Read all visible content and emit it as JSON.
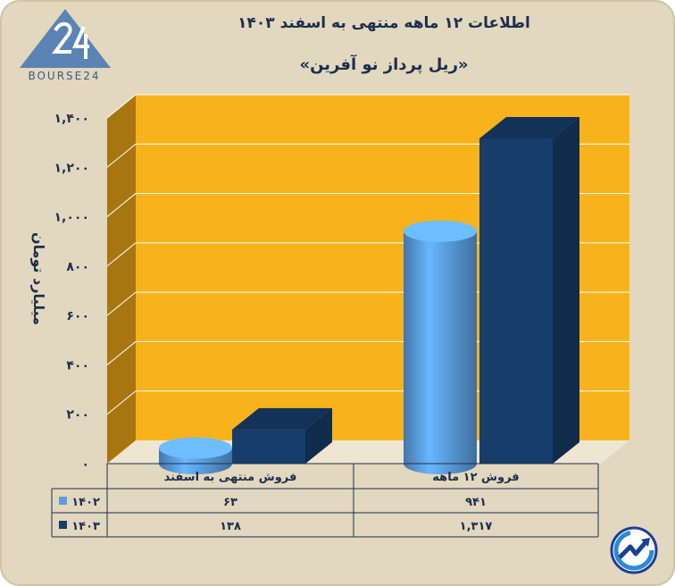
{
  "header": {
    "logo_text": "BOURSE24",
    "title": "اطلاعات ۱۲ ماهه منتهی به اسفند ۱۴۰۳",
    "subtitle": "«ریل پرداز نو آفرین»"
  },
  "colors": {
    "background": "#e2d7bf",
    "plot_area": "#f8b21b",
    "plot_side": "#a87610",
    "series_1402": "#5b9ee0",
    "series_1403": "#173d6b",
    "title_text": "#1b2f4c"
  },
  "chart_data": {
    "type": "bar",
    "ylabel": "میلیارد تومان",
    "ylim": [
      0,
      1400
    ],
    "y_ticks": [
      "۰",
      "۲۰۰",
      "۴۰۰",
      "۶۰۰",
      "۸۰۰",
      "۱,۰۰۰",
      "۱,۲۰۰",
      "۱,۴۰۰"
    ],
    "grid": true,
    "categories": [
      "فروش ۱۲ ماهه",
      "فروش منتهی به اسفند"
    ],
    "series": [
      {
        "name": "۱۴۰۲",
        "values": [
          941,
          63
        ],
        "labels": [
          "۹۴۱",
          "۶۳"
        ],
        "color": "#5b9ee0",
        "shape": "cylinder"
      },
      {
        "name": "۱۴۰۳",
        "values": [
          1317,
          138
        ],
        "labels": [
          "۱,۳۱۷",
          "۱۳۸"
        ],
        "color": "#173d6b",
        "shape": "box"
      }
    ],
    "legend_placement": "data-table-left"
  },
  "icons": {
    "brand_logo": "bourse24-logo",
    "corner_logo": "trend-arrow-icon"
  }
}
